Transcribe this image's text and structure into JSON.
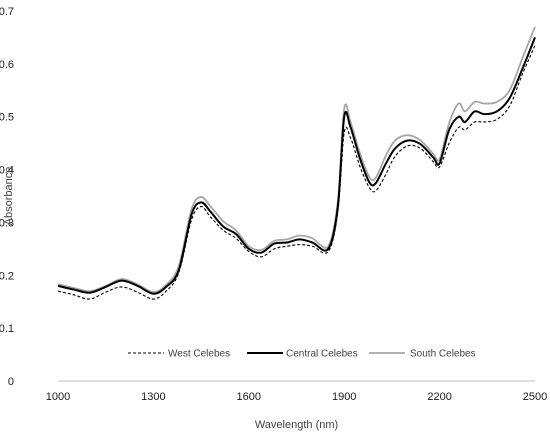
{
  "chart_data": {
    "type": "line",
    "title": "",
    "xlabel": "Wavelength (nm)",
    "ylabel": "Absorbance",
    "xlim": [
      1000,
      2500
    ],
    "ylim": [
      0,
      0.7
    ],
    "xticks": [
      "1000",
      "1300",
      "1600",
      "1900",
      "2200",
      "2500"
    ],
    "yticks": [
      "0",
      "0.1",
      "0.2",
      "0.3",
      "0.4",
      "0.5",
      "0.6",
      "0.7"
    ],
    "grid": false,
    "legend_position": "bottom-center",
    "x": [
      1000,
      1050,
      1100,
      1150,
      1200,
      1250,
      1300,
      1340,
      1380,
      1420,
      1450,
      1480,
      1520,
      1560,
      1600,
      1640,
      1680,
      1720,
      1760,
      1800,
      1850,
      1880,
      1900,
      1920,
      1950,
      1980,
      2000,
      2030,
      2060,
      2100,
      2140,
      2180,
      2200,
      2230,
      2260,
      2280,
      2310,
      2340,
      2380,
      2420,
      2460,
      2500
    ],
    "series": [
      {
        "name": "West Celebes",
        "color": "#000000",
        "dash": "dashed",
        "values": [
          0.17,
          0.163,
          0.155,
          0.168,
          0.178,
          0.168,
          0.155,
          0.17,
          0.205,
          0.305,
          0.33,
          0.31,
          0.285,
          0.27,
          0.245,
          0.235,
          0.25,
          0.255,
          0.258,
          0.255,
          0.245,
          0.32,
          0.47,
          0.46,
          0.405,
          0.365,
          0.36,
          0.39,
          0.425,
          0.445,
          0.44,
          0.415,
          0.405,
          0.45,
          0.48,
          0.475,
          0.49,
          0.49,
          0.495,
          0.52,
          0.58,
          0.635
        ]
      },
      {
        "name": "Central Celebes",
        "color": "#000000",
        "dash": "solid",
        "values": [
          0.18,
          0.173,
          0.167,
          0.178,
          0.19,
          0.18,
          0.165,
          0.178,
          0.21,
          0.315,
          0.338,
          0.32,
          0.292,
          0.278,
          0.25,
          0.243,
          0.26,
          0.262,
          0.268,
          0.262,
          0.25,
          0.33,
          0.5,
          0.48,
          0.42,
          0.375,
          0.375,
          0.41,
          0.44,
          0.455,
          0.448,
          0.423,
          0.412,
          0.475,
          0.5,
          0.49,
          0.51,
          0.505,
          0.51,
          0.535,
          0.59,
          0.65
        ]
      },
      {
        "name": "South Celebes",
        "color": "#a6a6a6",
        "dash": "solid",
        "values": [
          0.183,
          0.176,
          0.17,
          0.18,
          0.193,
          0.183,
          0.168,
          0.182,
          0.218,
          0.325,
          0.348,
          0.33,
          0.302,
          0.285,
          0.255,
          0.248,
          0.265,
          0.268,
          0.275,
          0.27,
          0.255,
          0.34,
          0.515,
          0.49,
          0.43,
          0.385,
          0.385,
          0.425,
          0.455,
          0.465,
          0.455,
          0.43,
          0.42,
          0.488,
          0.525,
          0.51,
          0.528,
          0.525,
          0.528,
          0.55,
          0.61,
          0.67
        ]
      }
    ]
  }
}
